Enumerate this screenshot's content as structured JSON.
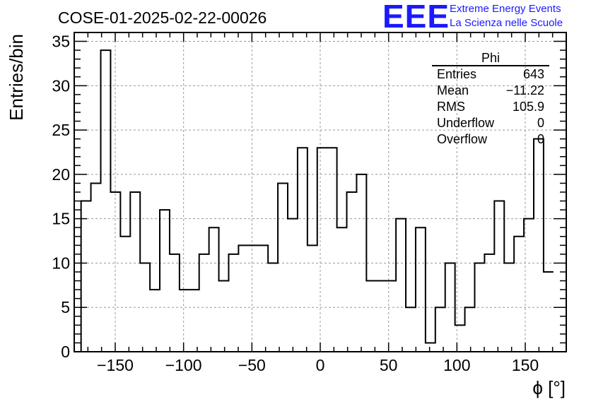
{
  "chart_data": {
    "type": "histogram",
    "title": "COSE-01-2025-02-22-00026",
    "xlabel": "ϕ [°]",
    "ylabel": "Entries/bin",
    "xlim": [
      -180,
      180
    ],
    "ylim": [
      0,
      36
    ],
    "bin_start": -175,
    "bin_width": 7.2,
    "values": [
      17,
      19,
      34,
      18,
      13,
      18,
      10,
      7,
      16,
      11,
      7,
      7,
      11,
      14,
      8,
      11,
      12,
      12,
      12,
      10,
      19,
      15,
      23,
      12,
      23,
      23,
      14,
      18,
      20,
      8,
      8,
      8,
      15,
      5,
      14,
      1,
      5,
      10,
      3,
      5,
      10,
      11,
      17,
      10,
      13,
      15,
      24,
      9
    ],
    "x_ticks": [
      "−150",
      "−100",
      "−50",
      "0",
      "50",
      "100",
      "150"
    ],
    "x_tick_values": [
      -150,
      -100,
      -50,
      0,
      50,
      100,
      150
    ],
    "y_ticks": [
      "0",
      "5",
      "10",
      "15",
      "20",
      "25",
      "30",
      "35"
    ],
    "y_tick_values": [
      0,
      5,
      10,
      15,
      20,
      25,
      30,
      35
    ],
    "grid": true,
    "line_color": "#000000",
    "grid_color": "#9a9a9a"
  },
  "logo": {
    "mark": "EEE",
    "line1": "Extreme Energy Events",
    "line2": "La Scienza nelle Scuole",
    "color": "#1a1aff"
  },
  "stats": {
    "name": "Phi",
    "rows": [
      {
        "label": "Entries",
        "value": "643"
      },
      {
        "label": "Mean",
        "value": "−11.22"
      },
      {
        "label": "RMS",
        "value": "105.9"
      },
      {
        "label": "Underflow",
        "value": "0"
      },
      {
        "label": "Overflow",
        "value": "0"
      }
    ]
  }
}
